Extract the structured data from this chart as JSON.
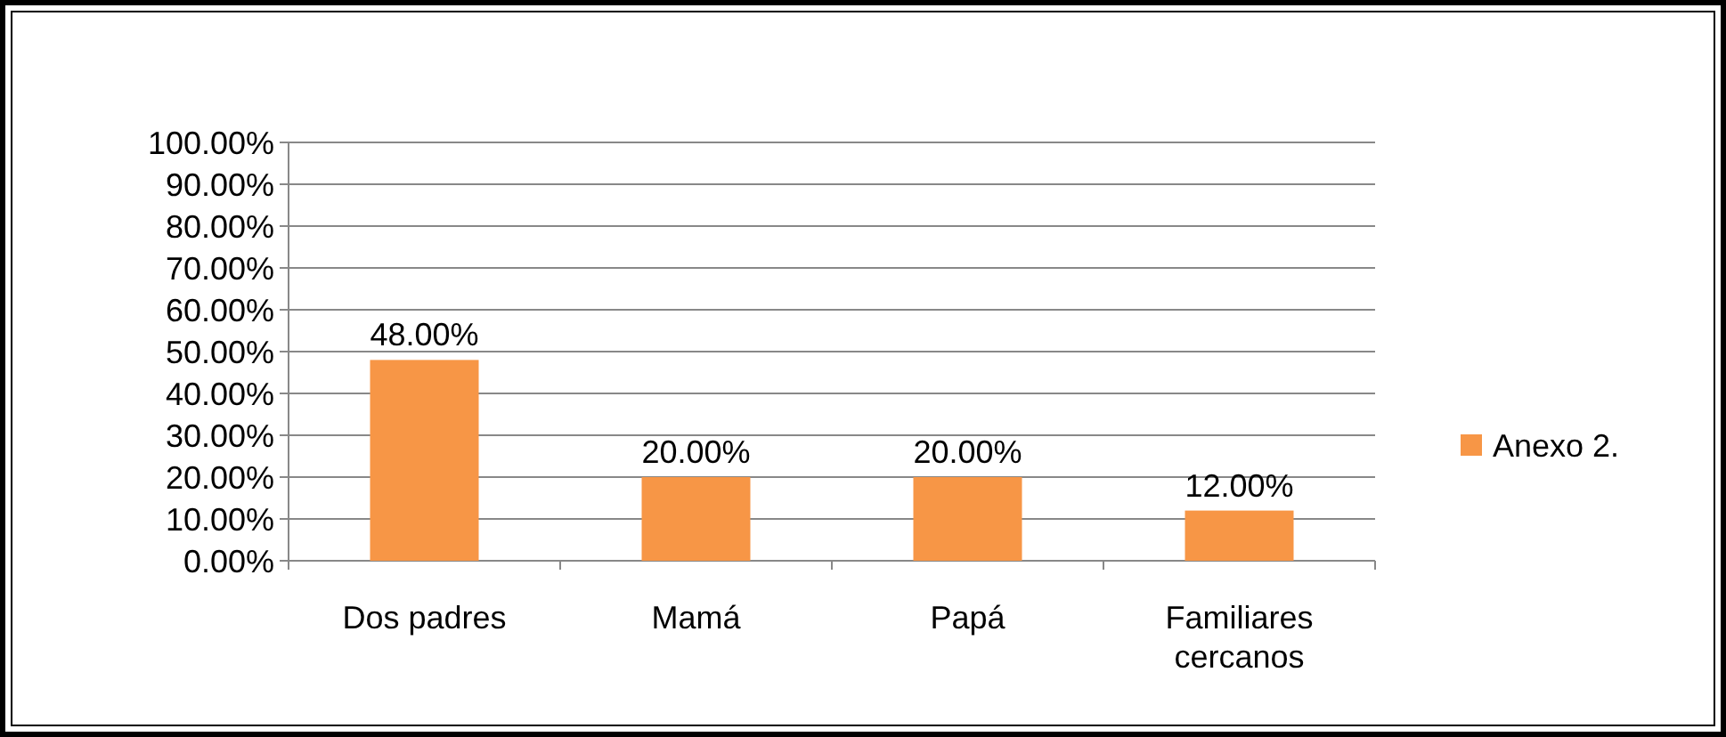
{
  "chart_data": {
    "type": "bar",
    "categories": [
      "Dos padres",
      "Mamá",
      "Papá",
      "Familiares cercanos"
    ],
    "series": [
      {
        "name": "Anexo 2.",
        "color": "#f79646",
        "values": [
          48,
          20,
          20,
          12
        ],
        "value_labels": [
          "48.00%",
          "20.00%",
          "20.00%",
          "12.00%"
        ]
      }
    ],
    "ylim": [
      0,
      100
    ],
    "yticks": [
      {
        "value": 0,
        "label": "0.00%"
      },
      {
        "value": 10,
        "label": "10.00%"
      },
      {
        "value": 20,
        "label": "20.00%"
      },
      {
        "value": 30,
        "label": "30.00%"
      },
      {
        "value": 40,
        "label": "40.00%"
      },
      {
        "value": 50,
        "label": "50.00%"
      },
      {
        "value": 60,
        "label": "60.00%"
      },
      {
        "value": 70,
        "label": "70.00%"
      },
      {
        "value": 80,
        "label": "80.00%"
      },
      {
        "value": 90,
        "label": "90.00%"
      },
      {
        "value": 100,
        "label": "100.00%"
      }
    ],
    "grid": "y",
    "legend": "right"
  }
}
